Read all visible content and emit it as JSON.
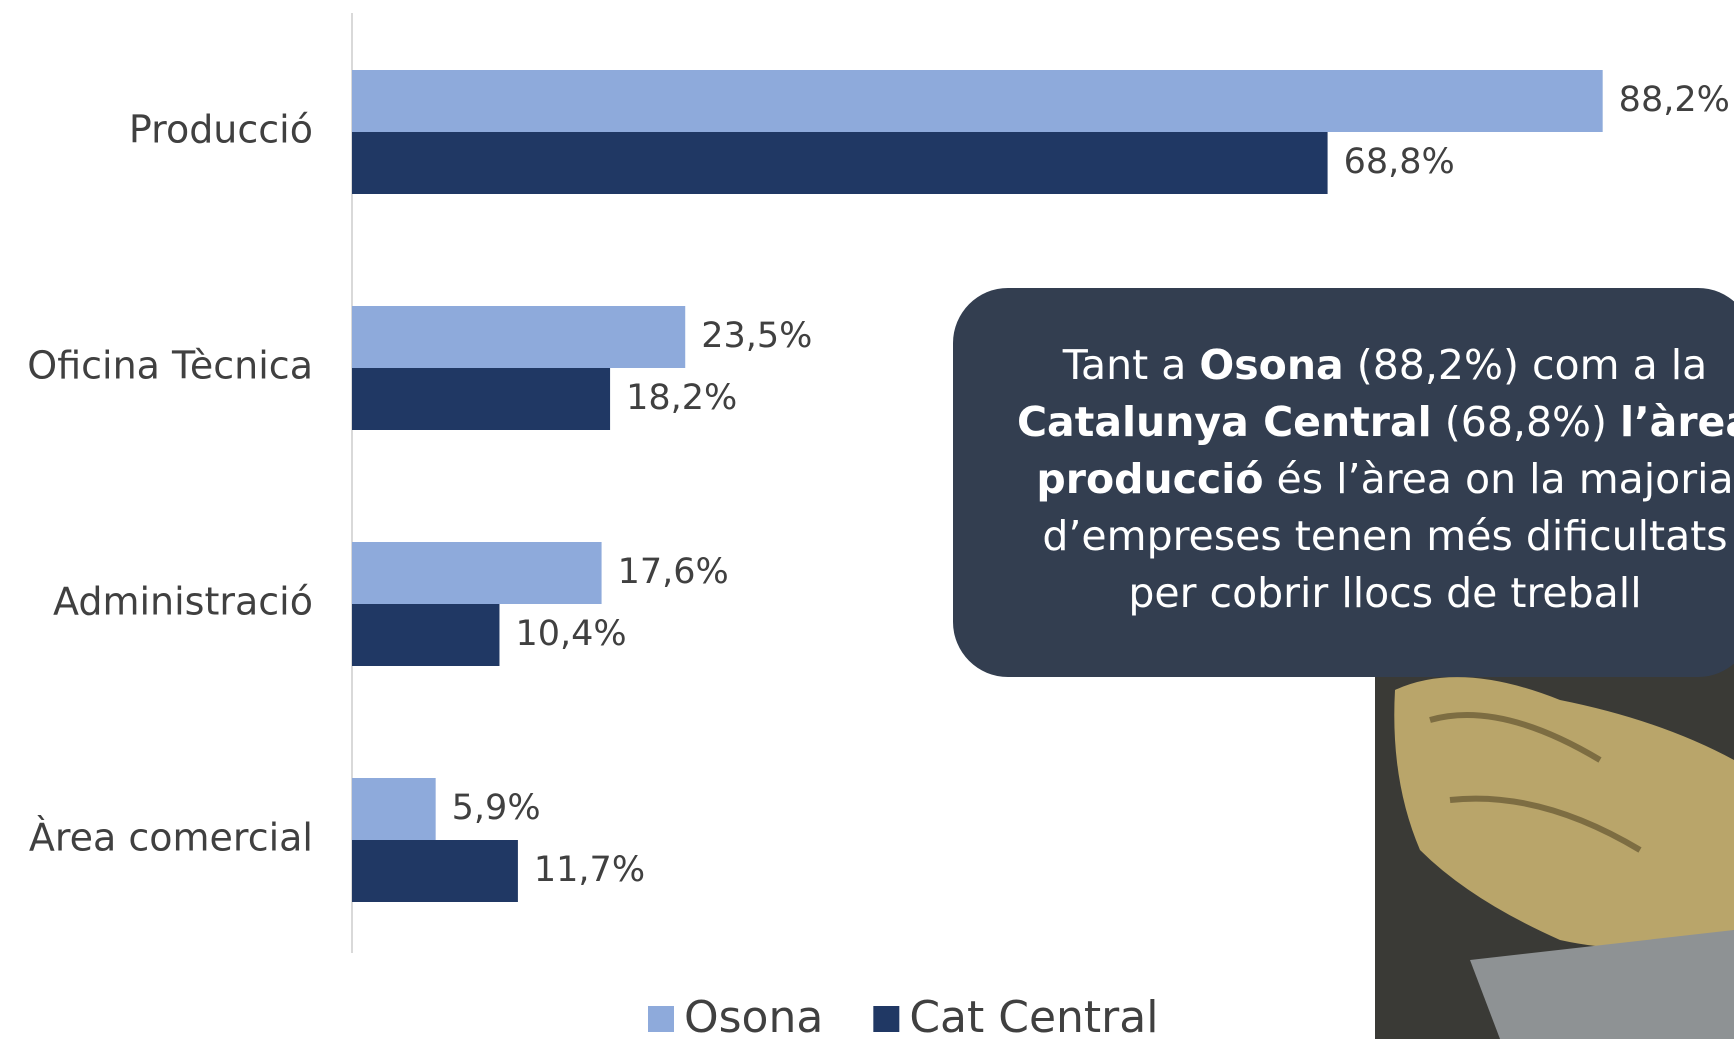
{
  "chart_data": {
    "type": "hbar",
    "categories": [
      "Producció",
      "Oficina Tècnica",
      "Administració",
      "Àrea comercial"
    ],
    "series": [
      {
        "name": "Osona",
        "color": "#8eaadb",
        "values": [
          88.2,
          23.5,
          17.6,
          5.9
        ],
        "value_labels": [
          "88,2%",
          "23,5%",
          "17,6%",
          "5,9%"
        ]
      },
      {
        "name": "Cat Central",
        "color": "#203864",
        "values": [
          68.8,
          18.2,
          10.4,
          11.7
        ],
        "value_labels": [
          "68,8%",
          "18,2%",
          "10,4%",
          "11,7%"
        ]
      }
    ],
    "legend": "bottom"
  },
  "callout": {
    "lines": [
      [
        {
          "text": "Tant a ",
          "bold": false
        },
        {
          "text": "Osona",
          "bold": true
        },
        {
          "text": " (88,2%) com a la",
          "bold": false
        }
      ],
      [
        {
          "text": "Catalunya Central",
          "bold": true
        },
        {
          "text": " (68,8%) ",
          "bold": false
        },
        {
          "text": "l’àrea",
          "bold": true
        }
      ],
      [
        {
          "text": "producció",
          "bold": true
        },
        {
          "text": " és l’àrea on la majoria",
          "bold": false
        }
      ],
      [
        {
          "text": "d’empreses tenen més dificultats",
          "bold": false
        }
      ],
      [
        {
          "text": "per cobrir llocs de treball",
          "bold": false
        }
      ]
    ]
  }
}
